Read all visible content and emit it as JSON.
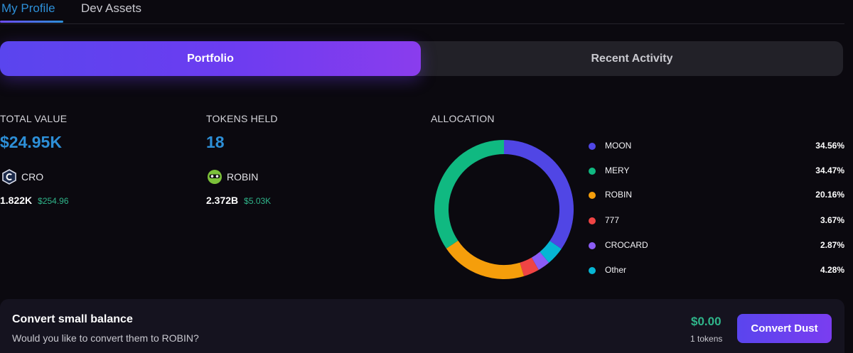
{
  "tabs": [
    {
      "label": "My Profile",
      "active": true
    },
    {
      "label": "Dev Assets",
      "active": false
    }
  ],
  "segment": {
    "portfolio": "Portfolio",
    "recent_activity": "Recent Activity"
  },
  "stats": {
    "total_value_label": "TOTAL VALUE",
    "total_value": "$24.95K",
    "tokens_held_label": "TOKENS HELD",
    "tokens_held": "18",
    "allocation_label": "ALLOCATION"
  },
  "top_tokens": [
    {
      "symbol": "CRO",
      "icon": "cro-token-icon",
      "amount": "1.822K",
      "usd": "$254.96"
    },
    {
      "symbol": "ROBIN",
      "icon": "robin-token-icon",
      "amount": "2.372B",
      "usd": "$5.03K"
    }
  ],
  "chart_data": {
    "type": "pie",
    "variant": "donut",
    "title": "ALLOCATION",
    "categories": [
      "MOON",
      "MERY",
      "ROBIN",
      "777",
      "CROCARD",
      "Other"
    ],
    "values": [
      34.56,
      34.47,
      20.16,
      3.67,
      2.87,
      4.28
    ],
    "labels": [
      "34.56%",
      "34.47%",
      "20.16%",
      "3.67%",
      "2.87%",
      "4.28%"
    ],
    "colors": [
      "#5046e5",
      "#10b981",
      "#f59e0b",
      "#ef4444",
      "#8b5cf6",
      "#06b6d4"
    ],
    "legend_position": "right",
    "start_angle": "top",
    "direction": "clockwise",
    "draw_order": [
      "MOON",
      "Other",
      "CROCARD",
      "777",
      "ROBIN",
      "MERY"
    ]
  },
  "convert": {
    "title": "Convert small balance",
    "subtitle": "Would you like to convert them to ROBIN?",
    "value": "$0.00",
    "tokens": "1 tokens",
    "button": "Convert Dust"
  },
  "colors": {
    "accent_blue": "#2d8fd7",
    "accent_purple": "#6c3cf0",
    "green": "#2fb58a",
    "background": "#0b090f"
  }
}
